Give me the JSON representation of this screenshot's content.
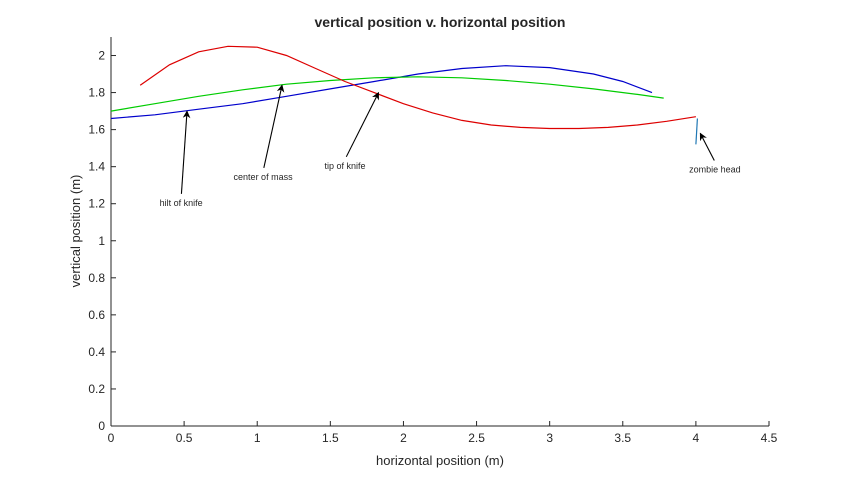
{
  "chart_data": {
    "type": "line",
    "title": "vertical position v. horizontal position",
    "xlabel": "horizontal position (m)",
    "ylabel": "vertical position (m)",
    "xlim": [
      0,
      4.5
    ],
    "ylim": [
      0,
      2.1
    ],
    "xticks": [
      "0",
      "0.5",
      "1",
      "1.5",
      "2",
      "2.5",
      "3",
      "3.5",
      "4",
      "4.5"
    ],
    "yticks": [
      "0",
      "0.2",
      "0.4",
      "0.6",
      "0.8",
      "1",
      "1.2",
      "1.4",
      "1.6",
      "1.8",
      "2"
    ],
    "grid": false,
    "series": [
      {
        "color": "#0000cc",
        "x": [
          0,
          0.3,
          0.6,
          0.9,
          1.2,
          1.5,
          1.8,
          2.1,
          2.4,
          2.7,
          3.0,
          3.3,
          3.5,
          3.7
        ],
        "y": [
          1.66,
          1.68,
          1.71,
          1.74,
          1.78,
          1.82,
          1.86,
          1.9,
          1.93,
          1.945,
          1.935,
          1.9,
          1.86,
          1.8
        ]
      },
      {
        "color": "#00cc00",
        "x": [
          0,
          0.3,
          0.6,
          0.9,
          1.2,
          1.5,
          1.8,
          2.1,
          2.4,
          2.7,
          3.0,
          3.3,
          3.6,
          3.78
        ],
        "y": [
          1.7,
          1.74,
          1.78,
          1.815,
          1.845,
          1.865,
          1.88,
          1.885,
          1.88,
          1.865,
          1.845,
          1.82,
          1.79,
          1.77
        ]
      },
      {
        "color": "#dd0000",
        "x": [
          0.2,
          0.4,
          0.6,
          0.8,
          1.0,
          1.2,
          1.4,
          1.6,
          1.8,
          2.0,
          2.2,
          2.4,
          2.6,
          2.8,
          3.0,
          3.2,
          3.4,
          3.6,
          3.8,
          4.0
        ],
        "y": [
          1.84,
          1.95,
          2.02,
          2.05,
          2.045,
          2.0,
          1.93,
          1.86,
          1.8,
          1.74,
          1.69,
          1.65,
          1.625,
          1.612,
          1.606,
          1.606,
          1.612,
          1.625,
          1.645,
          1.67
        ]
      },
      {
        "color": "#1f77b4",
        "x": [
          4.0,
          4.01
        ],
        "y": [
          1.52,
          1.66
        ]
      }
    ],
    "annotations": [
      {
        "text": "hilt of knife",
        "x": 0.48,
        "y": 1.21,
        "arrow_to": [
          0.52,
          1.7
        ]
      },
      {
        "text": "center of mass",
        "x": 1.04,
        "y": 1.35,
        "arrow_to": [
          1.17,
          1.84
        ]
      },
      {
        "text": "tip of knife",
        "x": 1.6,
        "y": 1.41,
        "arrow_to": [
          1.83,
          1.8
        ]
      },
      {
        "text": "zombie head",
        "x": 4.13,
        "y": 1.39,
        "arrow_to": [
          4.03,
          1.58
        ]
      }
    ]
  }
}
